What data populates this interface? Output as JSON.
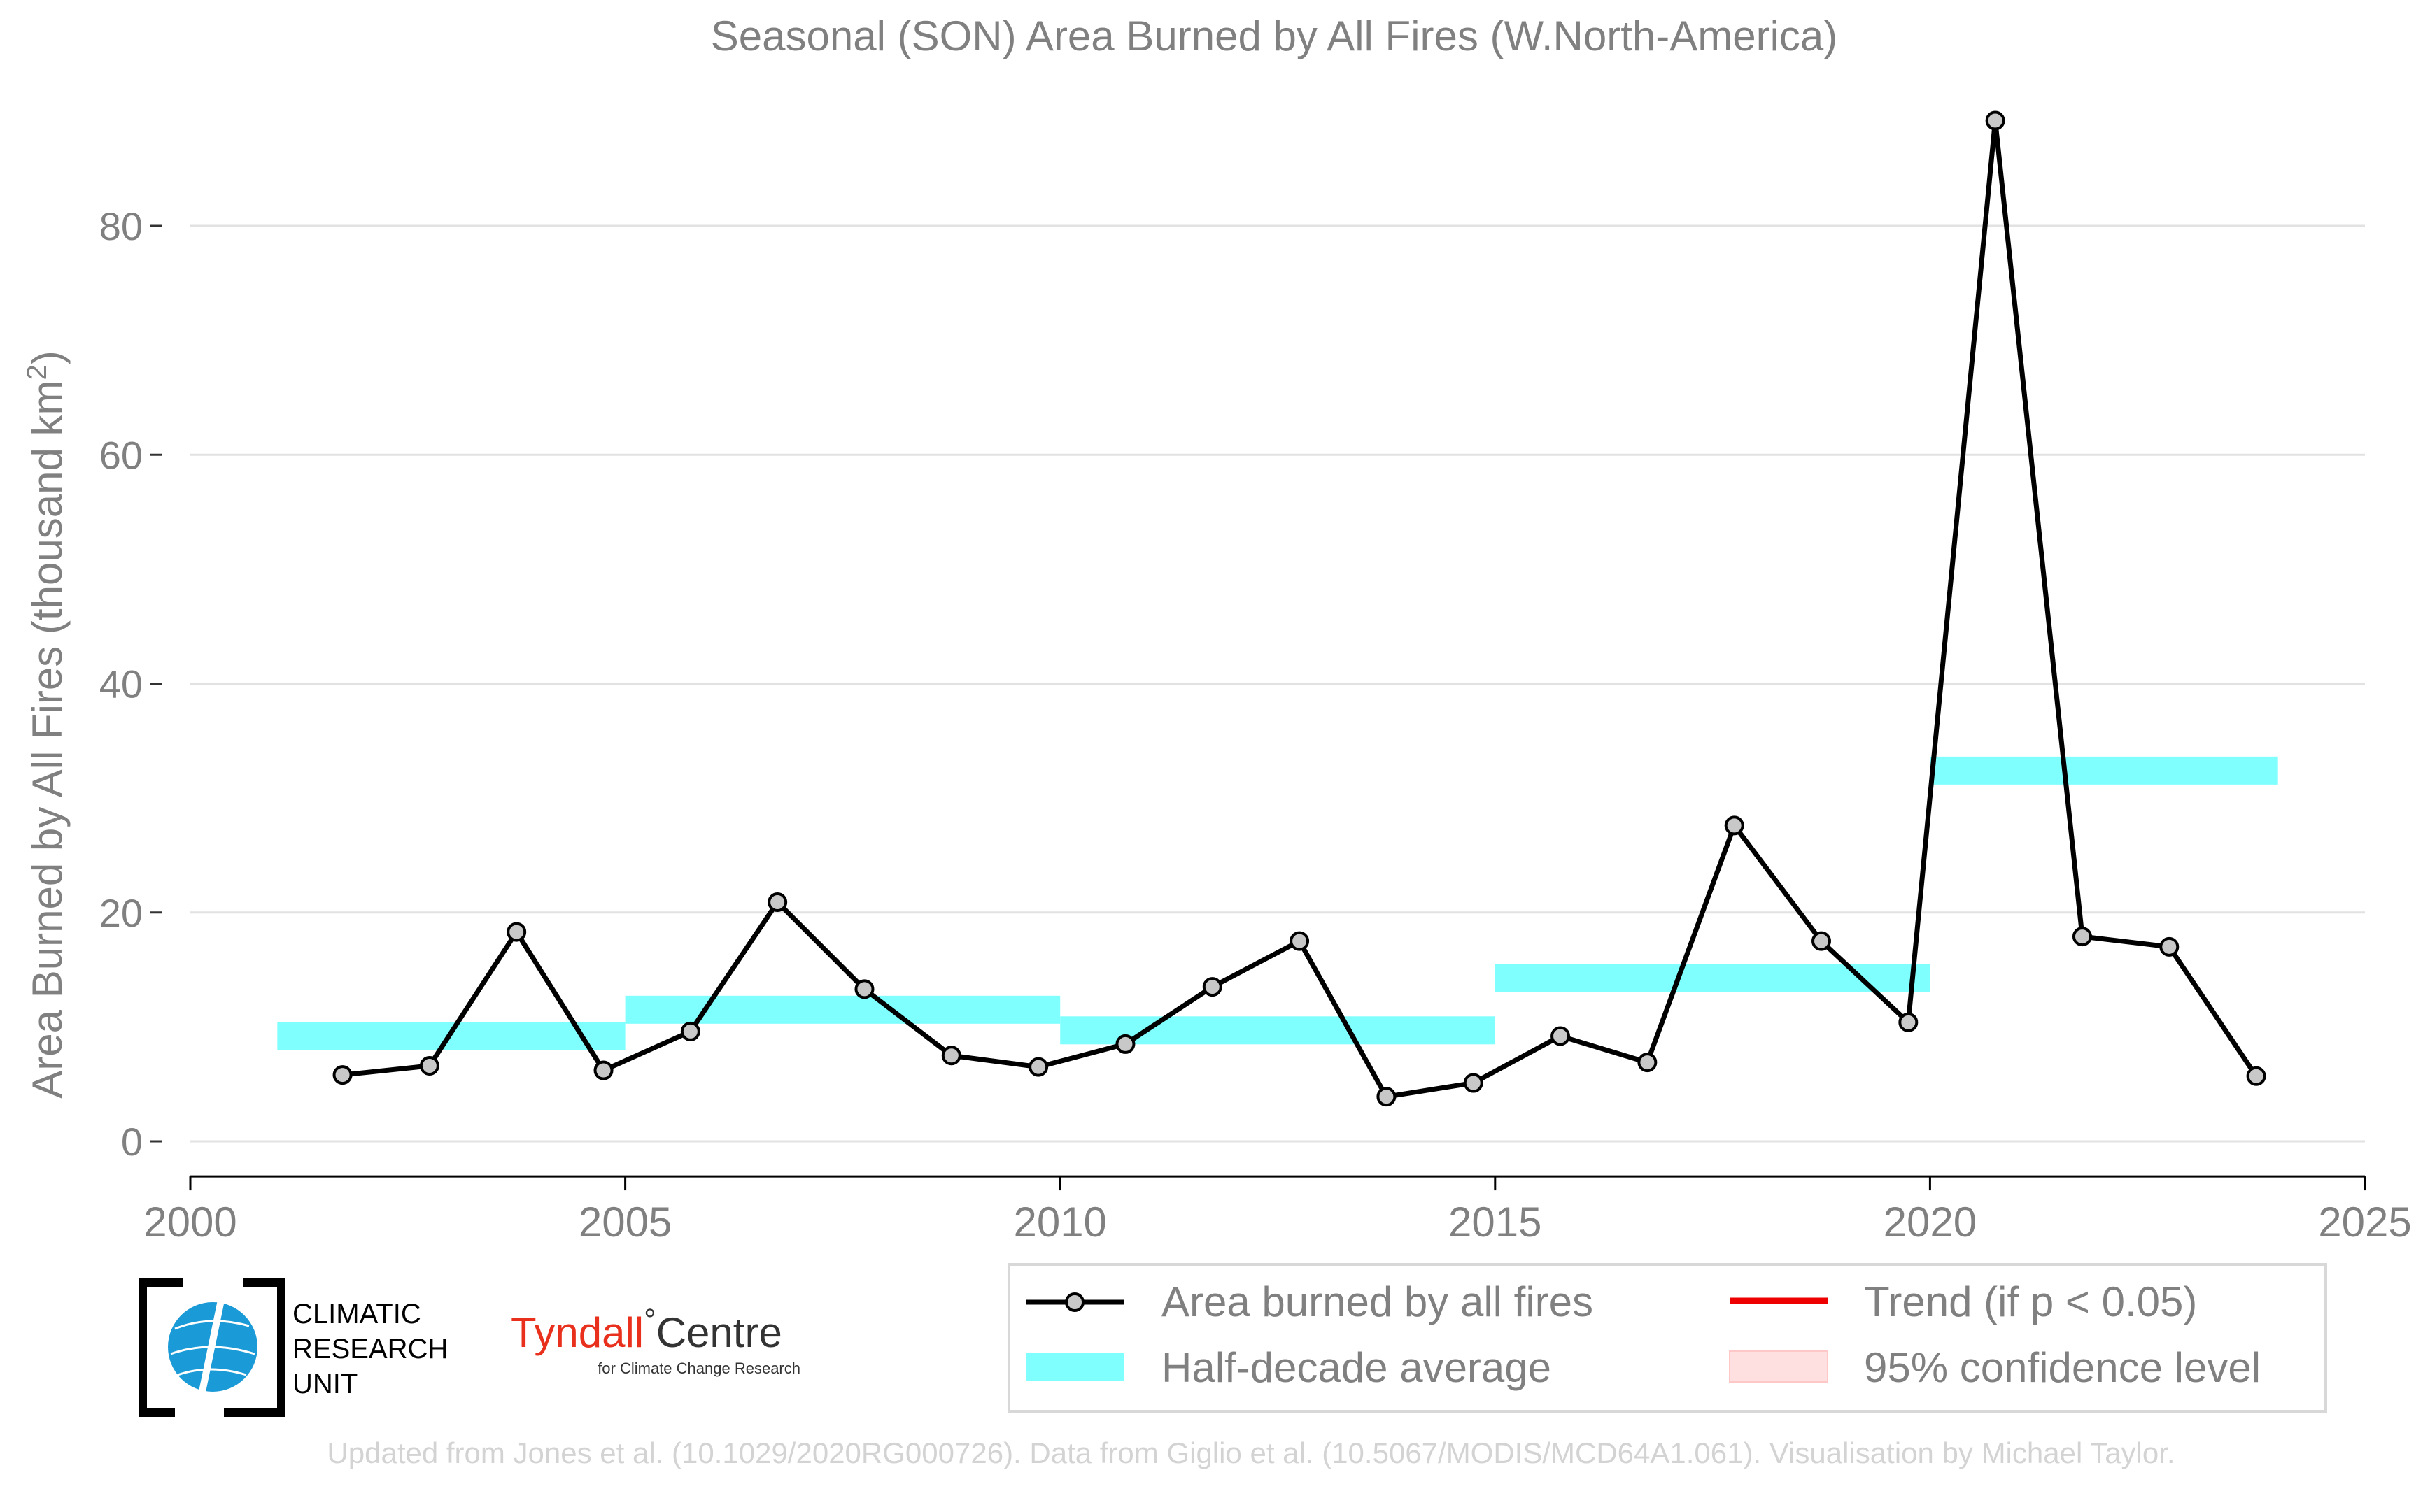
{
  "chart_data": {
    "type": "line",
    "title": "Seasonal (SON) Area Burned by All Fires (W.North-America)",
    "ylabel_main": "Area Burned by All Fires (thousand km",
    "ylabel_sup": "2",
    "ylabel_end": ")",
    "xlim": [
      2000,
      2025
    ],
    "ylim": [
      -3,
      90
    ],
    "x_ticks": [
      2000,
      2005,
      2010,
      2015,
      2020,
      2025
    ],
    "y_ticks": [
      0,
      20,
      40,
      60,
      80
    ],
    "grid": "horizontal",
    "legend_position": "bottom-right",
    "series": [
      {
        "name": "Area burned by all fires",
        "color": "#000000",
        "marker_fill": "#c8c8c8",
        "x": [
          2001.75,
          2002.75,
          2003.75,
          2004.75,
          2005.75,
          2006.75,
          2007.75,
          2008.75,
          2009.75,
          2010.75,
          2011.75,
          2012.75,
          2013.75,
          2014.75,
          2015.75,
          2016.75,
          2017.75,
          2018.75,
          2019.75,
          2020.75,
          2021.75,
          2022.75,
          2023.75
        ],
        "y": [
          5.8,
          6.6,
          18.3,
          6.2,
          9.6,
          20.9,
          13.3,
          7.5,
          6.5,
          8.5,
          13.5,
          17.5,
          3.9,
          5.1,
          9.2,
          6.9,
          27.6,
          17.5,
          10.4,
          89.2,
          17.9,
          17.0,
          5.7
        ]
      }
    ],
    "half_decade_average": {
      "name": "Half-decade average",
      "color": "#80ffff",
      "segments": [
        {
          "x0": 2001,
          "x1": 2005,
          "y": 9.2
        },
        {
          "x0": 2005,
          "x1": 2010,
          "y": 11.5
        },
        {
          "x0": 2010,
          "x1": 2015,
          "y": 9.7
        },
        {
          "x0": 2015,
          "x1": 2020,
          "y": 14.3
        },
        {
          "x0": 2020,
          "x1": 2024,
          "y": 32.4
        }
      ]
    },
    "legend": [
      {
        "label": "Area burned by all fires",
        "kind": "line-marker",
        "color": "#000000"
      },
      {
        "label": "Trend (if p < 0.05)",
        "kind": "line",
        "color": "#ee0000"
      },
      {
        "label": "Half-decade average",
        "kind": "band",
        "color": "#80ffff"
      },
      {
        "label": "95% confidence level",
        "kind": "band",
        "color": "#ffe0e0"
      }
    ]
  },
  "logos": {
    "cru_line1": "CLIMATIC",
    "cru_line2": "RESEARCH",
    "cru_line3": "UNIT",
    "tyndall_main": "Tyndall",
    "tyndall_degree": "°",
    "tyndall_centre": "Centre",
    "tyndall_sub": "for Climate Change Research"
  },
  "footer": {
    "credit": "Updated from Jones et al. (10.1029/2020RG000726). Data from Giglio et al. (10.5067/MODIS/MCD64A1.061). Visualisation by Michael Taylor."
  },
  "colors": {
    "axis_text": "#808080",
    "grid": "#e2e2e2",
    "footer_text": "#d3d3d3",
    "tyndall_red": "#e8301c",
    "cru_blue": "#1a9ad6"
  }
}
